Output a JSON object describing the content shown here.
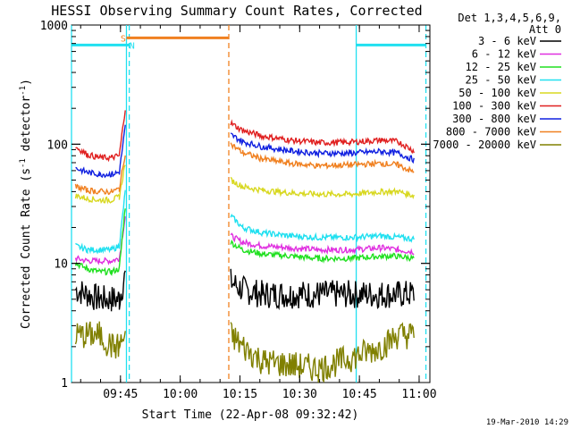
{
  "chart_data": {
    "type": "line",
    "title": "HESSI Observing Summary Count Rates, Corrected",
    "xlabel": "Start Time (22-Apr-08 09:32:42)",
    "ylabel_main": "Corrected Count Rate (s",
    "ylabel_sup1": "-1",
    "ylabel_mid": " detector",
    "ylabel_sup2": "-1",
    "ylabel_end": ")",
    "y_scale": "log",
    "ylim": [
      1,
      1000
    ],
    "xlim_minutes_after_start": [
      0,
      90
    ],
    "x_ticks": [
      {
        "label": "09:45",
        "value": 12.3
      },
      {
        "label": "10:00",
        "value": 27.3
      },
      {
        "label": "10:15",
        "value": 42.3
      },
      {
        "label": "10:30",
        "value": 57.3
      },
      {
        "label": "10:45",
        "value": 72.3
      },
      {
        "label": "11:00",
        "value": 87.3
      }
    ],
    "y_ticks": [
      {
        "label": "1",
        "value": 1
      },
      {
        "label": "10",
        "value": 10
      },
      {
        "label": "100",
        "value": 100
      },
      {
        "label": "1000",
        "value": 1000
      }
    ],
    "legend_header_1": "Det 1,3,4,5,6,9,",
    "legend_header_2": "Att 0",
    "legend_placement": "right",
    "series": [
      {
        "name": "3 - 6 keV",
        "color": "#000000",
        "x": [
          1,
          4,
          7,
          10,
          12,
          13.5,
          15,
          39.5,
          40,
          43,
          48,
          55,
          62,
          70,
          78,
          82,
          86
        ],
        "y": [
          6,
          5.5,
          5,
          5,
          5,
          8,
          null,
          null,
          7,
          6,
          5.5,
          5.5,
          5.5,
          5.5,
          5.5,
          5.5,
          5.5
        ]
      },
      {
        "name": "6 - 12 keV",
        "color": "#e030e0",
        "x": [
          1,
          4,
          7,
          10,
          12,
          13.5,
          15,
          39.5,
          40,
          43,
          48,
          55,
          62,
          70,
          78,
          82,
          86
        ],
        "y": [
          11,
          10.5,
          10.5,
          10.5,
          11,
          25,
          null,
          null,
          17,
          15,
          14,
          13.5,
          13,
          13,
          13.5,
          13,
          12.5
        ]
      },
      {
        "name": "12 - 25 keV",
        "color": "#20e020",
        "x": [
          1,
          4,
          7,
          10,
          12,
          13.5,
          15,
          39.5,
          40,
          43,
          48,
          55,
          62,
          70,
          78,
          82,
          86
        ],
        "y": [
          10,
          9,
          8.5,
          8.5,
          9,
          30,
          null,
          null,
          15,
          13,
          12,
          11.5,
          11,
          11,
          11.5,
          11.5,
          11
        ]
      },
      {
        "name": "25 - 50 keV",
        "color": "#20e0f0",
        "x": [
          1,
          4,
          7,
          10,
          12,
          13.5,
          15,
          39.5,
          40,
          43,
          48,
          55,
          62,
          70,
          78,
          82,
          86
        ],
        "y": [
          14,
          13,
          13,
          13,
          14,
          40,
          null,
          null,
          25,
          20,
          18,
          17,
          16.5,
          16.5,
          17,
          16.5,
          16
        ]
      },
      {
        "name": "50 - 100 keV",
        "color": "#d8d820",
        "x": [
          1,
          4,
          7,
          10,
          12,
          13.5,
          15,
          39.5,
          40,
          43,
          48,
          55,
          62,
          70,
          78,
          82,
          86
        ],
        "y": [
          37,
          35,
          34,
          34,
          36,
          70,
          null,
          null,
          50,
          44,
          41,
          39,
          38,
          38,
          40,
          40,
          37
        ]
      },
      {
        "name": "100 - 300 keV",
        "color": "#e02020",
        "x": [
          1,
          4,
          7,
          10,
          12,
          13.5,
          15,
          39.5,
          40,
          43,
          48,
          55,
          62,
          70,
          78,
          82,
          86
        ],
        "y": [
          95,
          82,
          77,
          77,
          80,
          200,
          null,
          null,
          150,
          130,
          117,
          108,
          103,
          104,
          108,
          105,
          88
        ]
      },
      {
        "name": "300 - 800 keV",
        "color": "#1020e0",
        "x": [
          1,
          4,
          7,
          10,
          12,
          13.5,
          15,
          39.5,
          40,
          43,
          48,
          55,
          62,
          70,
          78,
          82,
          86
        ],
        "y": [
          63,
          58,
          56,
          56,
          58,
          140,
          null,
          null,
          120,
          105,
          95,
          88,
          84,
          84,
          87,
          84,
          74
        ]
      },
      {
        "name": "800 - 7000 keV",
        "color": "#f08020",
        "x": [
          1,
          4,
          7,
          10,
          12,
          13.5,
          15,
          39.5,
          40,
          43,
          48,
          55,
          62,
          70,
          78,
          82,
          86
        ],
        "y": [
          44,
          41,
          40,
          40,
          42,
          85,
          null,
          null,
          100,
          85,
          75,
          69,
          66,
          67,
          69,
          67,
          58
        ]
      },
      {
        "name": "7000 - 20000 keV",
        "color": "#808000",
        "x": [
          1,
          4,
          7,
          10,
          12,
          13.5,
          15,
          39.5,
          40,
          43,
          48,
          55,
          62,
          70,
          78,
          82,
          86
        ],
        "y": [
          2.5,
          2.5,
          2.5,
          2,
          2,
          2.5,
          null,
          null,
          2.5,
          2,
          1.5,
          1.4,
          1.3,
          1.6,
          2,
          2.5,
          2.5
        ]
      }
    ],
    "flag_bars": [
      {
        "label": "S",
        "color": "#f08020",
        "x_start": 13.8,
        "x_end": 39.5,
        "y": 780
      },
      {
        "label": "N",
        "color": "#20e0f0",
        "x_start": 0,
        "x_end": 14.5,
        "y": 680
      },
      {
        "label": "",
        "color": "#20e0f0",
        "x_start": 71.5,
        "x_end": 89,
        "y": 680
      }
    ],
    "vertical_markers": [
      {
        "x": 13.8,
        "color": "#20e0f0",
        "style": "solid"
      },
      {
        "x": 14.5,
        "color": "#20e0f0",
        "style": "dashed"
      },
      {
        "x": 39.5,
        "color": "#f08020",
        "style": "dashed"
      },
      {
        "x": 71.5,
        "color": "#20e0f0",
        "style": "solid"
      },
      {
        "x": 89,
        "color": "#20e0f0",
        "style": "dashed"
      },
      {
        "x": 0,
        "color": "#20e0f0",
        "style": "solid"
      }
    ],
    "flag_labels": [
      {
        "text": "S",
        "color": "#f08020",
        "x": 13.0,
        "y": 780
      },
      {
        "text": "N",
        "color": "#20e0f0",
        "x": 15.2,
        "y": 680
      }
    ],
    "grid": false
  },
  "footer_timestamp": "19-Mar-2010 14:29"
}
